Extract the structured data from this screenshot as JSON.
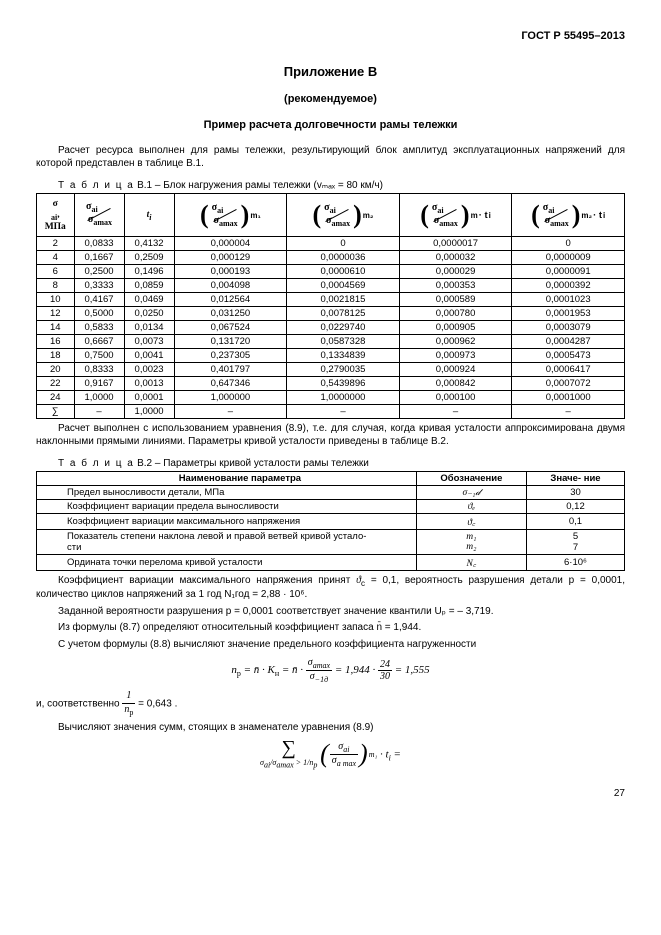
{
  "doc_id": "ГОСТ Р 55495–2013",
  "appendix": "Приложение В",
  "rec": "(рекомендуемое)",
  "example_title": "Пример расчета долговечности рамы тележки",
  "intro": "Расчет ресурса выполнен для рамы тележки, результирующий блок амплитуд эксплуатационных напряжений для которой представлен в таблице В.1.",
  "table1_caption_spaced": "Т а б л и ц а",
  "table1_caption_rest": "В.1 – Блок нагружения рамы тележки (vₘₐₓ = 80 км/ч)",
  "table1": {
    "rows": [
      [
        "2",
        "0,0833",
        "0,4132",
        "0,000004",
        "0",
        "0,0000017",
        "0"
      ],
      [
        "4",
        "0,1667",
        "0,2509",
        "0,000129",
        "0,0000036",
        "0,000032",
        "0,0000009"
      ],
      [
        "6",
        "0,2500",
        "0,1496",
        "0,000193",
        "0,0000610",
        "0,000029",
        "0,0000091"
      ],
      [
        "8",
        "0,3333",
        "0,0859",
        "0,004098",
        "0,0004569",
        "0,000353",
        "0,0000392"
      ],
      [
        "10",
        "0,4167",
        "0,0469",
        "0,012564",
        "0,0021815",
        "0,000589",
        "0,0001023"
      ],
      [
        "12",
        "0,5000",
        "0,0250",
        "0,031250",
        "0,0078125",
        "0,000780",
        "0,0001953"
      ],
      [
        "14",
        "0,5833",
        "0,0134",
        "0,067524",
        "0,0229740",
        "0,000905",
        "0,0003079"
      ],
      [
        "16",
        "0,6667",
        "0,0073",
        "0,131720",
        "0,0587328",
        "0,000962",
        "0,0004287"
      ],
      [
        "18",
        "0,7500",
        "0,0041",
        "0,237305",
        "0,1334839",
        "0,000973",
        "0,0005473"
      ],
      [
        "20",
        "0,8333",
        "0,0023",
        "0,401797",
        "0,2790035",
        "0,000924",
        "0,0006417"
      ],
      [
        "22",
        "0,9167",
        "0,0013",
        "0,647346",
        "0,5439896",
        "0,000842",
        "0,0007072"
      ],
      [
        "24",
        "1,0000",
        "0,0001",
        "1,000000",
        "1,0000000",
        "0,000100",
        "0,0001000"
      ],
      [
        "∑",
        "–",
        "1,0000",
        "–",
        "–",
        "–",
        "–"
      ]
    ]
  },
  "mid_text": "Расчет выполнен с использованием уравнения (8.9), т.е. для случая, когда кривая усталости аппроксимирована двумя наклонными прямыми линиями. Параметры кривой усталости приведены в таблице В.2.",
  "table2_caption_spaced": "Т а б л и ц а",
  "table2_caption_rest": "В.2 – Параметры кривой усталости рамы тележки",
  "table2": {
    "head": [
      "Наименование параметра",
      "Обозначение",
      "Значе-\nние"
    ],
    "rows": [
      [
        "Предел выносливости детали, МПа",
        "σ₋₁𝒹",
        "30"
      ],
      [
        "Коэффициент вариации предела выносливости",
        "ϑₑ",
        "0,12"
      ],
      [
        "Коэффициент вариации максимального напряжения",
        "ϑ꜀",
        "0,1"
      ],
      [
        "Показатель степени наклона левой и правой ветвей кривой устало-\nсти",
        "m₁\nm₂",
        "5\n7"
      ],
      [
        "Ордината точки перелома кривой усталости",
        "N꜀",
        "6·10⁶"
      ]
    ]
  },
  "p_coef1": "Коэффициент вариации максимального напряжения принят",
  "p_coef2": " = 0,1, вероятность разрушения детали p = 0,0001, количество циклов напряжений за 1 год N₁год = 2,88 · 10⁶.",
  "p_quant": "Заданной вероятности разрушения p = 0,0001 соответствует значение квантили Uₚ = – 3,719.",
  "p_form87": "Из формулы (8.7) определяют относительный коэффициент запаса n̄ = 1,944.",
  "p_form88": "С учетом формулы (8.8) вычисляют значение предельного коэффициента нагруженности",
  "formula1_text": "nₚ = n̄ · Kₙ = n̄ · (σₐₘₐₓ / σ₋₁𝒹) = 1,944 · (24/30) = 1,555",
  "p_inv_pre": "и, соответственно ",
  "p_inv_post": " = 0,643 .",
  "p_sums": "Вычисляют значения сумм, стоящих в знаменателе уравнения (8.9)",
  "page": "27"
}
